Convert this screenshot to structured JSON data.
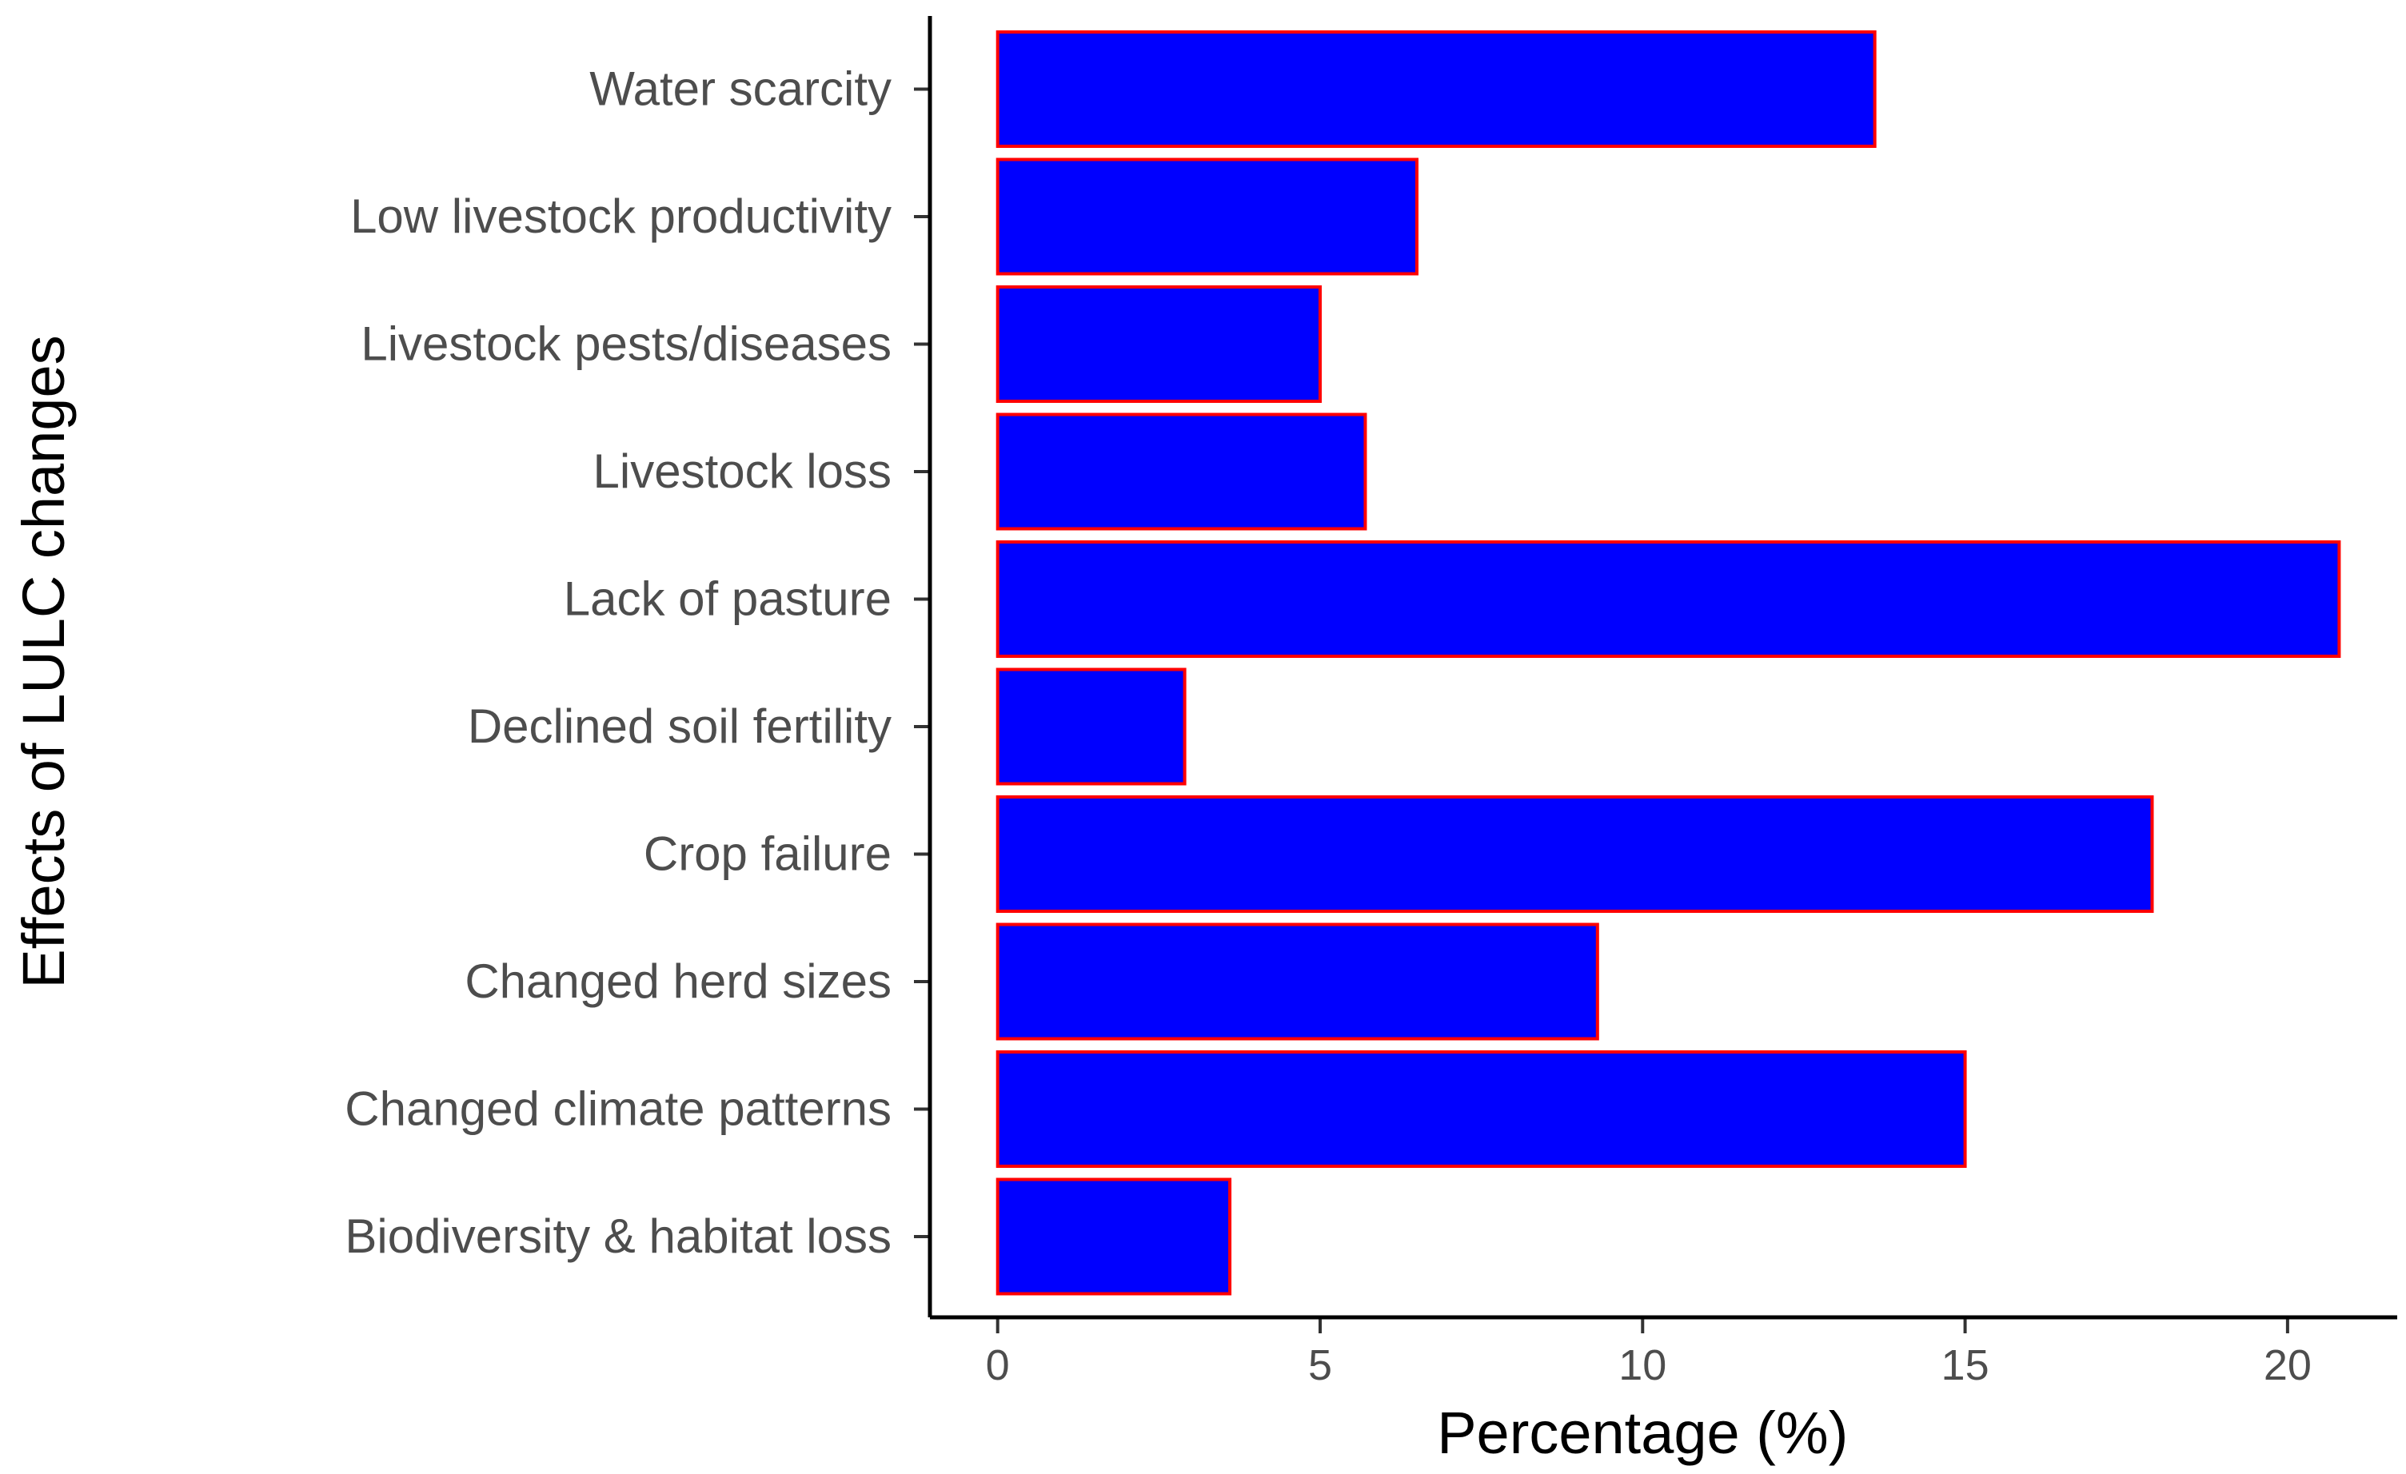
{
  "chart_data": {
    "type": "bar",
    "orientation": "horizontal",
    "categories": [
      "Water scarcity",
      "Low livestock productivity",
      "Livestock pests/diseases",
      "Livestock loss",
      "Lack of pasture",
      "Declined soil fertility",
      "Crop failure",
      "Changed herd sizes",
      "Changed climate patterns",
      "Biodiversity & habitat loss"
    ],
    "values": [
      13.6,
      6.5,
      5.0,
      5.7,
      20.8,
      2.9,
      17.9,
      9.3,
      15.0,
      3.6
    ],
    "title": "",
    "xlabel": "Percentage (%)",
    "ylabel": "Effects of LULC changes",
    "xlim": [
      -1.05,
      21.7
    ],
    "xticks": [
      "0",
      "5",
      "10",
      "15",
      "20"
    ],
    "xtick_values": [
      0,
      5,
      10,
      15,
      20
    ],
    "grid": false,
    "colors": {
      "bar_fill": "#0000ff",
      "bar_stroke": "#ff0000",
      "axis": "#000000",
      "tick_text": "#4d4d4d"
    }
  }
}
